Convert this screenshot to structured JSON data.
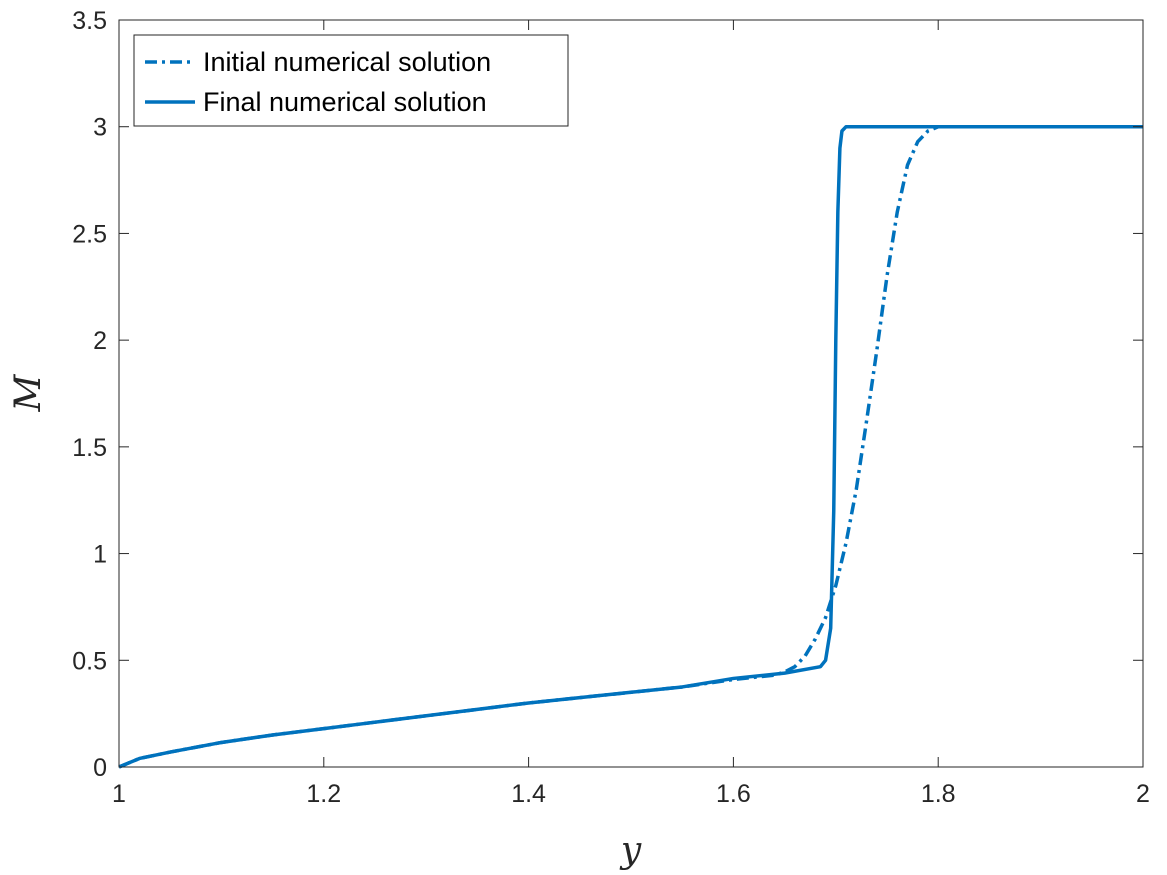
{
  "chart_data": {
    "type": "line",
    "title": "",
    "xlabel": "y",
    "ylabel": "M",
    "xlim": [
      1,
      2
    ],
    "ylim": [
      0,
      3.5
    ],
    "xticks": [
      "1",
      "1.2",
      "1.4",
      "1.6",
      "1.8",
      "2"
    ],
    "yticks": [
      "0",
      "0.5",
      "1",
      "1.5",
      "2",
      "2.5",
      "3",
      "3.5"
    ],
    "grid": false,
    "legend_position": "top-left",
    "colors": {
      "series": "#0072BD",
      "axis": "#262626"
    },
    "series": [
      {
        "name": "Initial numerical solution",
        "line_style": "dash-dot",
        "x": [
          1.0,
          1.02,
          1.05,
          1.1,
          1.15,
          1.2,
          1.25,
          1.3,
          1.35,
          1.4,
          1.45,
          1.5,
          1.55,
          1.6,
          1.62,
          1.64,
          1.65,
          1.66,
          1.67,
          1.68,
          1.69,
          1.7,
          1.71,
          1.72,
          1.73,
          1.74,
          1.75,
          1.76,
          1.77,
          1.78,
          1.79,
          1.8,
          1.82,
          1.85,
          1.9,
          1.95,
          2.0
        ],
        "y": [
          0.0,
          0.04,
          0.07,
          0.115,
          0.15,
          0.18,
          0.21,
          0.24,
          0.27,
          0.3,
          0.325,
          0.35,
          0.375,
          0.41,
          0.42,
          0.43,
          0.445,
          0.47,
          0.52,
          0.6,
          0.7,
          0.85,
          1.05,
          1.3,
          1.62,
          1.95,
          2.3,
          2.6,
          2.82,
          2.93,
          2.98,
          3.0,
          3.0,
          3.0,
          3.0,
          3.0,
          3.0
        ]
      },
      {
        "name": "Final numerical solution",
        "line_style": "solid",
        "x": [
          1.0,
          1.02,
          1.05,
          1.1,
          1.15,
          1.2,
          1.25,
          1.3,
          1.35,
          1.4,
          1.45,
          1.5,
          1.55,
          1.6,
          1.65,
          1.685,
          1.69,
          1.695,
          1.698,
          1.7,
          1.702,
          1.704,
          1.706,
          1.71,
          1.75,
          1.8,
          1.85,
          1.9,
          1.95,
          2.0
        ],
        "y": [
          0.0,
          0.04,
          0.07,
          0.115,
          0.15,
          0.18,
          0.21,
          0.24,
          0.27,
          0.3,
          0.325,
          0.35,
          0.375,
          0.415,
          0.44,
          0.47,
          0.5,
          0.65,
          1.2,
          2.0,
          2.6,
          2.9,
          2.98,
          3.0,
          3.0,
          3.0,
          3.0,
          3.0,
          3.0,
          3.0
        ]
      }
    ]
  }
}
